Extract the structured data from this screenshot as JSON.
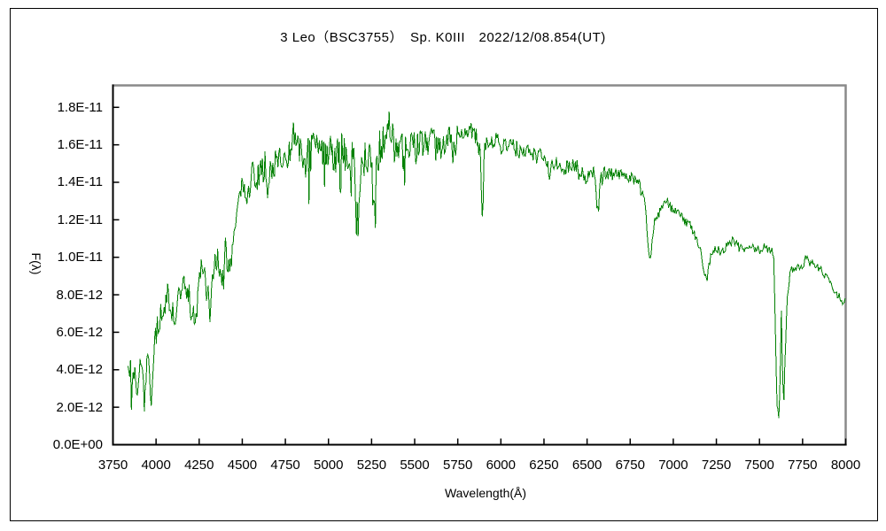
{
  "window": {
    "background": "#ffffff",
    "border_color": "#000000"
  },
  "chart_data": {
    "type": "line",
    "title": "3 Leo（BSC3755）　Sp. K0III　2022/12/08.854(UT)",
    "xlabel": "Wavelength(Å)",
    "ylabel": "F(λ)",
    "legend": "none",
    "grid": false,
    "line_color": "#008000",
    "frame_dark_color": "#000000",
    "frame_light_color": "#8a8a8a",
    "xlim": [
      3750,
      8000
    ],
    "y_axis_top_e12": 19.17,
    "x_ticks": [
      3750,
      4000,
      4250,
      4500,
      4750,
      5000,
      5250,
      5500,
      5750,
      6000,
      6250,
      6500,
      6750,
      7000,
      7250,
      7500,
      7750,
      8000
    ],
    "y_ticks": [
      {
        "value_e12": 0,
        "label": "0.0E+00"
      },
      {
        "value_e12": 2,
        "label": "2.0E-12"
      },
      {
        "value_e12": 4,
        "label": "4.0E-12"
      },
      {
        "value_e12": 6,
        "label": "6.0E-12"
      },
      {
        "value_e12": 8,
        "label": "8.0E-12"
      },
      {
        "value_e12": 10,
        "label": "1.0E-11"
      },
      {
        "value_e12": 12,
        "label": "1.2E-11"
      },
      {
        "value_e12": 14,
        "label": "1.4E-11"
      },
      {
        "value_e12": 16,
        "label": "1.6E-11"
      },
      {
        "value_e12": 18,
        "label": "1.8E-11"
      }
    ],
    "data_range": [
      3837,
      8000
    ],
    "sample_step_angstrom": 5.0,
    "seed": 20221208,
    "envelope_points_e12": [
      [
        3837,
        4.2
      ],
      [
        3845,
        3.3
      ],
      [
        3852,
        4.0
      ],
      [
        3858,
        2.9
      ],
      [
        3865,
        3.3
      ],
      [
        3872,
        4.3
      ],
      [
        3880,
        3.4
      ],
      [
        3890,
        2.2
      ],
      [
        3900,
        3.4
      ],
      [
        3910,
        4.3
      ],
      [
        3920,
        4.7
      ],
      [
        3926,
        3.6
      ],
      [
        3933,
        2.1
      ],
      [
        3942,
        3.8
      ],
      [
        3950,
        4.6
      ],
      [
        3955,
        4.8
      ],
      [
        3962,
        3.5
      ],
      [
        3970,
        1.8
      ],
      [
        3980,
        3.1
      ],
      [
        3986,
        4.8
      ],
      [
        3995,
        5.8
      ],
      [
        4010,
        6.4
      ],
      [
        4025,
        6.8
      ],
      [
        4040,
        7.1
      ],
      [
        4055,
        7.7
      ],
      [
        4074,
        8.1
      ],
      [
        4090,
        7.3
      ],
      [
        4110,
        6.9
      ],
      [
        4126,
        7.8
      ],
      [
        4145,
        8.5
      ],
      [
        4160,
        8.9
      ],
      [
        4180,
        8.2
      ],
      [
        4200,
        7.7
      ],
      [
        4217,
        7.3
      ],
      [
        4227,
        6.7
      ],
      [
        4237,
        7.9
      ],
      [
        4250,
        9.2
      ],
      [
        4263,
        9.5
      ],
      [
        4280,
        8.9
      ],
      [
        4295,
        7.9
      ],
      [
        4305,
        8.3
      ],
      [
        4315,
        6.3
      ],
      [
        4325,
        8.8
      ],
      [
        4341,
        9.6
      ],
      [
        4360,
        9.9
      ],
      [
        4385,
        8.6
      ],
      [
        4400,
        10.2
      ],
      [
        4420,
        10.1
      ],
      [
        4434,
        9.7
      ],
      [
        4460,
        11.5
      ],
      [
        4480,
        12.8
      ],
      [
        4500,
        13.6
      ],
      [
        4520,
        13.1
      ],
      [
        4540,
        13.9
      ],
      [
        4560,
        14.3
      ],
      [
        4580,
        13.9
      ],
      [
        4600,
        14.5
      ],
      [
        4630,
        14.9
      ],
      [
        4649,
        13.6
      ],
      [
        4665,
        15.1
      ],
      [
        4680,
        14.6
      ],
      [
        4700,
        15.2
      ],
      [
        4730,
        15.4
      ],
      [
        4760,
        15.7
      ],
      [
        4793,
        16.3
      ],
      [
        4820,
        15.7
      ],
      [
        4845,
        15.4
      ],
      [
        4861,
        15.0
      ],
      [
        4880,
        15.7
      ],
      [
        4900,
        15.9
      ],
      [
        4930,
        15.6
      ],
      [
        4960,
        15.7
      ],
      [
        5000,
        15.8
      ],
      [
        5040,
        15.5
      ],
      [
        5080,
        15.7
      ],
      [
        5110,
        15.4
      ],
      [
        5140,
        15.6
      ],
      [
        5155,
        15.3
      ],
      [
        5170,
        11.2
      ],
      [
        5185,
        15.1
      ],
      [
        5210,
        15.3
      ],
      [
        5240,
        15.5
      ],
      [
        5255,
        15.0
      ],
      [
        5265,
        13.4
      ],
      [
        5278,
        15.2
      ],
      [
        5305,
        16.0
      ],
      [
        5330,
        16.4
      ],
      [
        5360,
        17.2
      ],
      [
        5385,
        16.5
      ],
      [
        5410,
        16.0
      ],
      [
        5440,
        15.9
      ],
      [
        5470,
        16.1
      ],
      [
        5500,
        16.0
      ],
      [
        5530,
        16.2
      ],
      [
        5560,
        16.0
      ],
      [
        5600,
        16.3
      ],
      [
        5640,
        16.1
      ],
      [
        5680,
        16.3
      ],
      [
        5720,
        16.2
      ],
      [
        5750,
        16.4
      ],
      [
        5780,
        16.6
      ],
      [
        5805,
        16.4
      ],
      [
        5836,
        16.8
      ],
      [
        5862,
        16.3
      ],
      [
        5880,
        16.1
      ],
      [
        5893,
        12.1
      ],
      [
        5905,
        15.9
      ],
      [
        5930,
        16.1
      ],
      [
        5960,
        16.2
      ],
      [
        6000,
        16.0
      ],
      [
        6050,
        15.9
      ],
      [
        6100,
        15.7
      ],
      [
        6150,
        15.6
      ],
      [
        6200,
        15.4
      ],
      [
        6235,
        15.5
      ],
      [
        6270,
        15.0
      ],
      [
        6282,
        14.3
      ],
      [
        6300,
        14.9
      ],
      [
        6340,
        15.0
      ],
      [
        6362,
        14.5
      ],
      [
        6400,
        15.0
      ],
      [
        6440,
        14.8
      ],
      [
        6480,
        14.5
      ],
      [
        6493,
        13.6
      ],
      [
        6510,
        14.6
      ],
      [
        6540,
        14.4
      ],
      [
        6563,
        12.3
      ],
      [
        6580,
        14.3
      ],
      [
        6620,
        14.5
      ],
      [
        6660,
        14.4
      ],
      [
        6695,
        14.5
      ],
      [
        6725,
        14.2
      ],
      [
        6760,
        14.2
      ],
      [
        6800,
        14.0
      ],
      [
        6828,
        13.4
      ],
      [
        6845,
        11.8
      ],
      [
        6856,
        10.3
      ],
      [
        6866,
        9.6
      ],
      [
        6877,
        10.9
      ],
      [
        6888,
        11.8
      ],
      [
        6900,
        12.1
      ],
      [
        6930,
        12.5
      ],
      [
        6962,
        13.0
      ],
      [
        7000,
        12.5
      ],
      [
        7030,
        12.3
      ],
      [
        7060,
        12.0
      ],
      [
        7090,
        11.8
      ],
      [
        7120,
        11.3
      ],
      [
        7150,
        10.6
      ],
      [
        7172,
        9.7
      ],
      [
        7185,
        9.0
      ],
      [
        7195,
        8.8
      ],
      [
        7207,
        9.6
      ],
      [
        7220,
        10.2
      ],
      [
        7250,
        10.4
      ],
      [
        7280,
        10.3
      ],
      [
        7310,
        10.6
      ],
      [
        7347,
        10.9
      ],
      [
        7380,
        10.5
      ],
      [
        7410,
        10.4
      ],
      [
        7440,
        10.4
      ],
      [
        7470,
        10.5
      ],
      [
        7500,
        10.4
      ],
      [
        7530,
        10.5
      ],
      [
        7558,
        10.4
      ],
      [
        7583,
        10.2
      ],
      [
        7593,
        5.5
      ],
      [
        7602,
        2.2
      ],
      [
        7612,
        1.3
      ],
      [
        7619,
        3.2
      ],
      [
        7627,
        7.2
      ],
      [
        7634,
        3.0
      ],
      [
        7642,
        2.6
      ],
      [
        7652,
        5.5
      ],
      [
        7662,
        7.8
      ],
      [
        7672,
        8.8
      ],
      [
        7683,
        9.4
      ],
      [
        7700,
        9.3
      ],
      [
        7722,
        9.6
      ],
      [
        7745,
        9.4
      ],
      [
        7770,
        10.0
      ],
      [
        7792,
        9.7
      ],
      [
        7815,
        9.6
      ],
      [
        7838,
        9.5
      ],
      [
        7860,
        9.3
      ],
      [
        7885,
        9.0
      ],
      [
        7912,
        8.6
      ],
      [
        7940,
        8.2
      ],
      [
        7962,
        7.9
      ],
      [
        7983,
        7.6
      ],
      [
        8000,
        7.8
      ]
    ],
    "noise_bands": [
      {
        "from": 3837,
        "to": 3990,
        "amp": 0.55,
        "spike_prob": 0.08,
        "spike_amp": 1.0
      },
      {
        "from": 3990,
        "to": 4400,
        "amp": 0.7,
        "spike_prob": 0.1,
        "spike_amp": 1.4
      },
      {
        "from": 4400,
        "to": 4750,
        "amp": 0.9,
        "spike_prob": 0.1,
        "spike_amp": 1.8
      },
      {
        "from": 4750,
        "to": 5450,
        "amp": 1.0,
        "spike_prob": 0.1,
        "spike_amp": 2.2
      },
      {
        "from": 5450,
        "to": 5750,
        "amp": 0.75,
        "spike_prob": 0.08,
        "spike_amp": 1.4
      },
      {
        "from": 5750,
        "to": 6150,
        "amp": 0.5,
        "spike_prob": 0.07,
        "spike_amp": 1.1
      },
      {
        "from": 6150,
        "to": 6700,
        "amp": 0.42,
        "spike_prob": 0.07,
        "spike_amp": 1.0
      },
      {
        "from": 6700,
        "to": 6840,
        "amp": 0.3,
        "spike_prob": 0.05,
        "spike_amp": 0.6
      },
      {
        "from": 6840,
        "to": 7580,
        "amp": 0.25,
        "spike_prob": 0.05,
        "spike_amp": 0.5
      },
      {
        "from": 7580,
        "to": 7665,
        "amp": 0.3,
        "spike_prob": 0.0,
        "spike_amp": 0.0
      },
      {
        "from": 7665,
        "to": 8000,
        "amp": 0.2,
        "spike_prob": 0.04,
        "spike_amp": 0.4
      }
    ]
  }
}
